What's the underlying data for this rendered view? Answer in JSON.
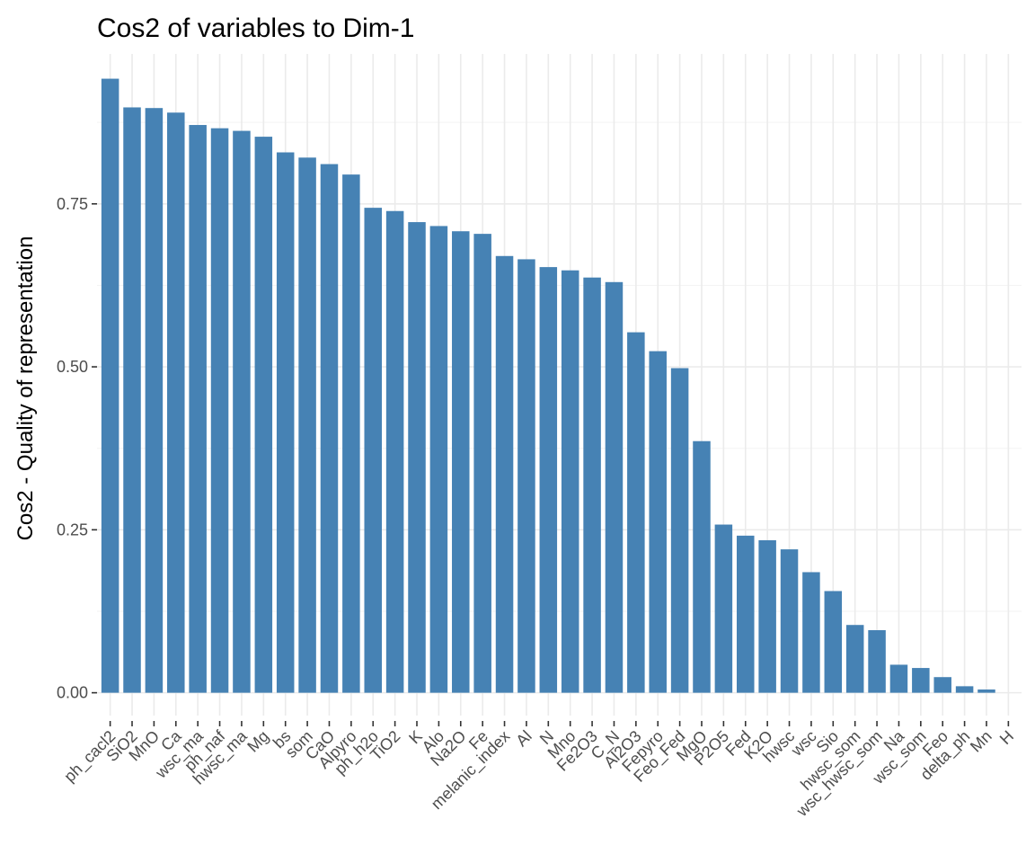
{
  "chart_data": {
    "type": "bar",
    "title": "Cos2 of variables to Dim-1",
    "xlabel": "",
    "ylabel": "Cos2 - Quality of representation",
    "ylim": [
      -0.035,
      0.98
    ],
    "yticks": [
      0,
      0.25,
      0.5,
      0.75
    ],
    "ytick_labels": [
      "0.00",
      "0.25",
      "0.50",
      "0.75"
    ],
    "grid": true,
    "bar_color": "#4682b4",
    "categories": [
      "ph_cacl2",
      "SiO2",
      "MnO",
      "Ca",
      "wsc_ma",
      "ph_naf",
      "hwsc_ma",
      "Mg",
      "bs",
      "som",
      "CaO",
      "Alpyro",
      "ph_h2o",
      "TiO2",
      "K",
      "Alo",
      "Na2O",
      "Fe",
      "melanic_index",
      "Al",
      "N",
      "Mno",
      "Fe2O3",
      "C_N",
      "Al2O3",
      "Fepyro",
      "Feo_Fed",
      "MgO",
      "P2O5",
      "Fed",
      "K2O",
      "hwsc",
      "wsc",
      "Sio",
      "hwsc_som",
      "wsc_hwsc_som",
      "Na",
      "wsc_som",
      "Feo",
      "delta_ph",
      "Mn",
      "H"
    ],
    "values": [
      0.942,
      0.898,
      0.897,
      0.89,
      0.871,
      0.866,
      0.862,
      0.853,
      0.829,
      0.821,
      0.811,
      0.795,
      0.744,
      0.739,
      0.722,
      0.716,
      0.708,
      0.704,
      0.67,
      0.665,
      0.653,
      0.648,
      0.637,
      0.63,
      0.553,
      0.524,
      0.498,
      0.386,
      0.258,
      0.241,
      0.234,
      0.22,
      0.185,
      0.156,
      0.104,
      0.096,
      0.043,
      0.038,
      0.024,
      0.01,
      0.005,
      0.0
    ]
  }
}
